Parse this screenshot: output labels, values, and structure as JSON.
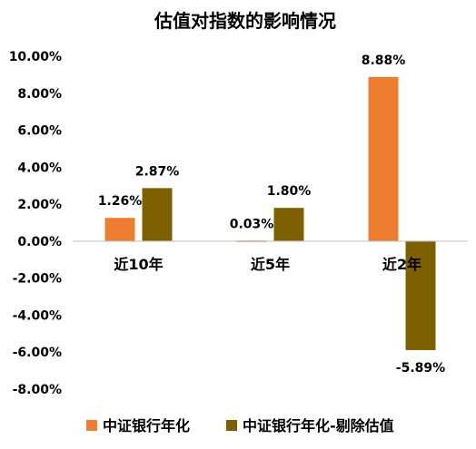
{
  "chart_data": {
    "type": "bar",
    "title": "估值对指数的影响情况",
    "xlabel": "",
    "ylabel": "",
    "categories": [
      "近10年",
      "近5年",
      "近2年"
    ],
    "series": [
      {
        "name": "中证银行年化",
        "values": [
          1.26,
          0.03,
          8.88
        ],
        "color": "#ED7D31",
        "labels": [
          "1.26%",
          "0.03%",
          "8.88%"
        ]
      },
      {
        "name": "中证银行年化-剔除估值",
        "values": [
          2.87,
          1.8,
          -5.89
        ],
        "color": "#7F6000",
        "labels": [
          "2.87%",
          "1.80%",
          "-5.89%"
        ]
      }
    ],
    "ylim": [
      -8,
      10
    ],
    "yticks": [
      -8,
      -6,
      -4,
      -2,
      0,
      2,
      4,
      6,
      8,
      10
    ],
    "ytick_labels": [
      "-8.00%",
      "-6.00%",
      "-4.00%",
      "-2.00%",
      "0.00%",
      "2.00%",
      "4.00%",
      "6.00%",
      "8.00%",
      "10.00%"
    ],
    "grid": false,
    "legend_position": "bottom"
  }
}
